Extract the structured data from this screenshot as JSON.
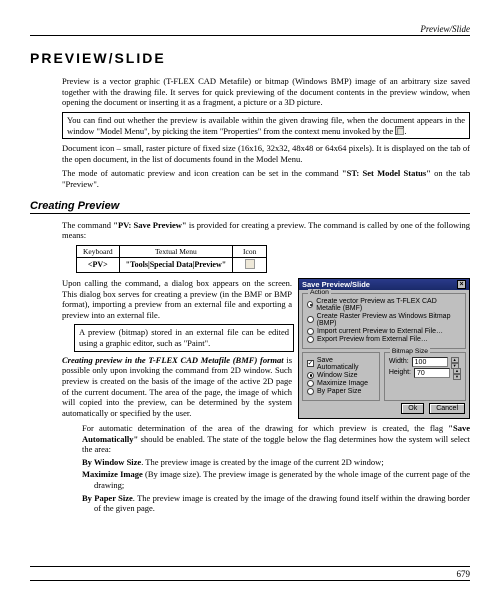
{
  "header": {
    "section": "Preview/Slide"
  },
  "h1": "Preview/Slide",
  "intro": {
    "p1": "Preview is a vector graphic (T-FLEX CAD Metafile) or bitmap (Windows BMP) image of an arbitrary size saved together with the drawing file. It serves for quick previewing of the document contents in the preview window, when opening the document or inserting it as a fragment, a picture or a 3D picture.",
    "call1a": "You can find out whether the preview is available within the given drawing file, when the document appears in the window \"Model Menu\", by picking the item \"Properties\" from the context menu invoked by the ",
    "call1b": ".",
    "p2a": "Document icon – small, raster picture of fixed size (16x16, 32x32, 48x48 or 64x64 pixels). It is displayed on the tab of the open document, in the list of documents found in the Model Menu.",
    "p3a": "The mode of automatic preview and icon creation can be set in the command ",
    "p3cmd": "\"ST: Set Model Status\"",
    "p3b": " on the tab \"Preview\"."
  },
  "h2": "Creating Preview",
  "cp": {
    "p1a": "The command ",
    "p1cmd": "\"PV: Save Preview\"",
    "p1b": " is provided for creating a preview. The command is called by one of the following means:",
    "table": {
      "headers": [
        "Keyboard",
        "Textual Menu",
        "Icon"
      ],
      "kbd": "<PV>",
      "menu": "\"Tools|Special Data|Preview\""
    },
    "p2": "Upon calling the command, a dialog box appears on the screen. This dialog box serves for creating a preview (in the BMF or BMP format), importing a preview from an external file and exporting a preview into an external file.",
    "call2": "A preview (bitmap) stored in an external file can be edited using a graphic editor, such as \"Paint\".",
    "p3a": "Creating preview in the T-FLEX CAD Metafile (BMF) format",
    "p3b": " is possible only upon invoking the command from 2D window. Such preview is created on the basis of the image of the active 2D page of the current document. The area of the page, the image of which will copied into the preview, can be determined by the system automatically or specified by the user.",
    "p4a": "For automatic determination of the area of the drawing for which preview is created, the flag ",
    "p4flag": "\"Save Automatically\"",
    "p4b": " should be enabled. The state of the toggle below the flag determines how the system will select the area:",
    "li1a": "By Window Size",
    "li1b": ". The preview image is created by the image of the current 2D window;",
    "li2a": "Maximize Image",
    "li2b": " (By image size). The preview image is generated by the whole image of the current page of the drawing;",
    "li3a": "By Paper Size",
    "li3b": ". The preview image is created by the image of the drawing found itself within the drawing border of the given page."
  },
  "dialog": {
    "title": "Save Preview/Slide",
    "group_action": "Action",
    "opt1": "Create vector Preview as T-FLEX CAD Metafile (BMF)",
    "opt2": "Create Raster Preview as Windows Bitmap (BMP)",
    "opt3": "Import current Preview to External File…",
    "opt4": "Export Preview from External File…",
    "left_legend": "",
    "chk1": "Save Automatically",
    "r_win": "Window Size",
    "r_max": "Maximize Image",
    "r_paper": "By Paper Size",
    "right_legend": "Bitmap Size",
    "lbl_w": "Width:",
    "val_w": "100",
    "lbl_h": "Height:",
    "val_h": "70",
    "btn_ok": "Ok",
    "btn_cancel": "Cancel"
  },
  "footer": {
    "pagenum": "679"
  }
}
